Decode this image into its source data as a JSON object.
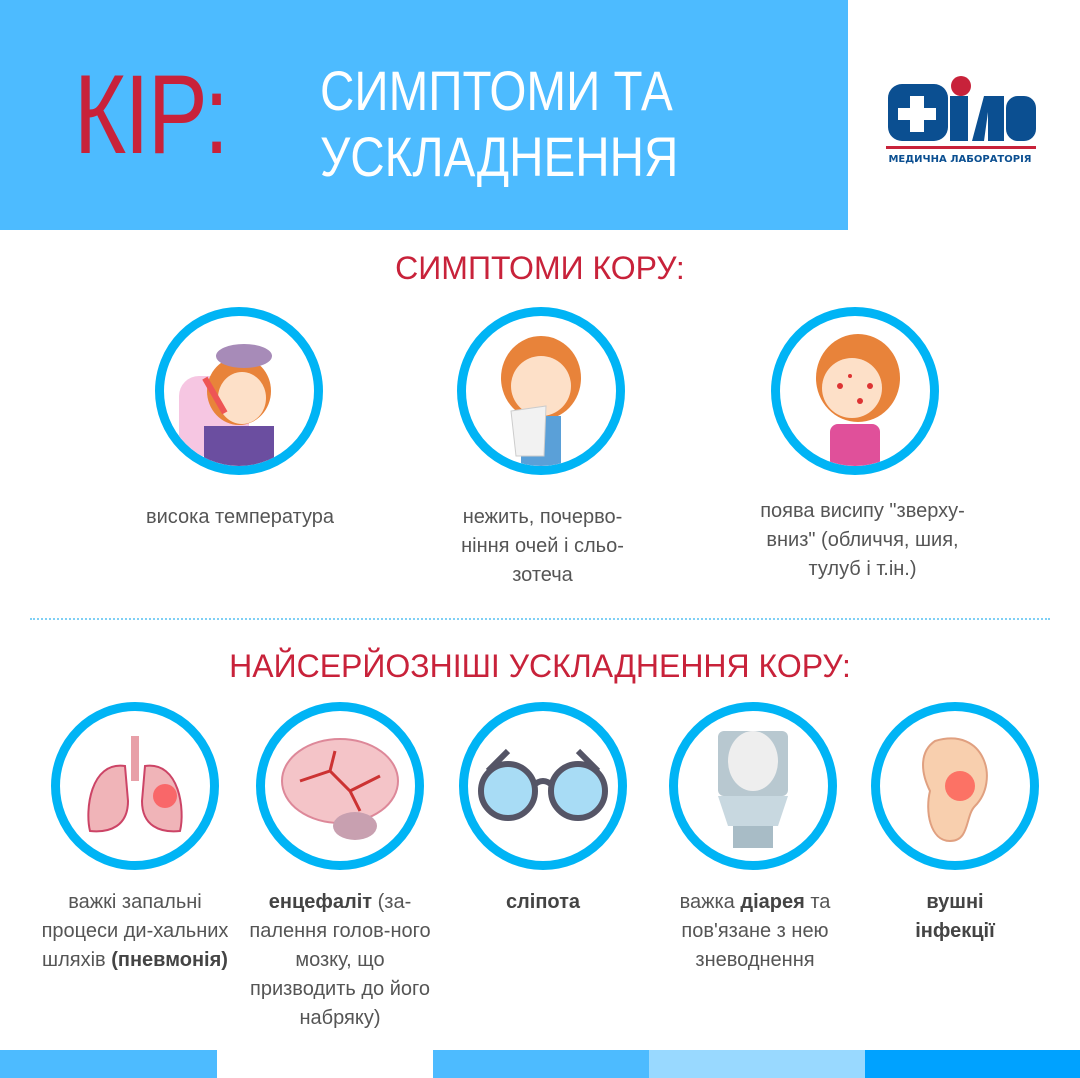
{
  "header": {
    "title_main": "КІР:",
    "title_line1": "СИМПТОМИ ТА",
    "title_line2": "УСКЛАДНЕННЯ"
  },
  "logo": {
    "name": "Діла",
    "subtitle": "МЕДИЧНА ЛАБОРАТОРІЯ"
  },
  "symptoms": {
    "heading": "СИМПТОМИ КОРУ:",
    "items": [
      {
        "icon": "fever-girl-icon",
        "text": "висока температура"
      },
      {
        "icon": "runny-nose-girl-icon",
        "text": "нежить, почерво-ніння очей і сльо-зотеча"
      },
      {
        "icon": "rash-girl-icon",
        "text": "поява висипу \"зверху-вниз\" (обличчя, шия, тулуб і т.ін.)"
      }
    ]
  },
  "complications": {
    "heading": "НАЙСЕРЙОЗНІШІ УСКЛАДНЕННЯ КОРУ:",
    "items": [
      {
        "icon": "lungs-icon",
        "pre": "важкі запальні процеси ди-хальних шляхів",
        "bold": "(пневмонія)",
        "post": ""
      },
      {
        "icon": "brain-icon",
        "pre": "",
        "bold": "енцефаліт",
        "post": " (за-палення голов-ного мозку, що призводить до його набряку)"
      },
      {
        "icon": "glasses-icon",
        "pre": "",
        "bold": "сліпота",
        "post": ""
      },
      {
        "icon": "toilet-icon",
        "pre": "важка ",
        "bold": "діарея",
        "post": " та пов'язане з нею зневоднення"
      },
      {
        "icon": "ear-icon",
        "pre": "",
        "bold": "вушні інфекції",
        "post": ""
      }
    ]
  },
  "colors": {
    "accent": "#4dbbff",
    "ring": "#00b4f5",
    "title_red": "#c8223a",
    "bar_light": "#99d9ff",
    "bar_dark": "#00a2ff"
  }
}
